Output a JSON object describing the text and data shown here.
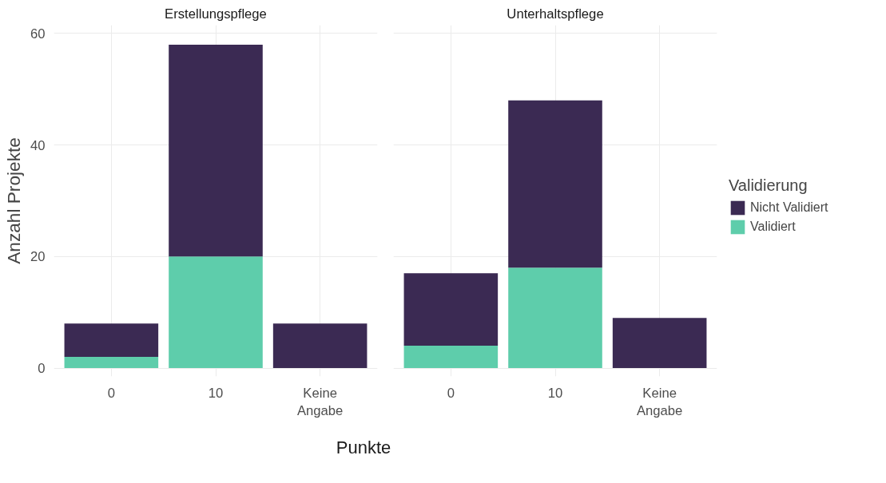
{
  "chart_data": [
    {
      "type": "bar",
      "title": "Erstellungspflege",
      "xlabel": "Punkte",
      "ylabel": "Anzahl Projekte",
      "categories": [
        "0",
        "10",
        "Keine Angabe"
      ],
      "stacked": true,
      "ylim": [
        0,
        60
      ],
      "yticks": [
        0,
        20,
        40,
        60
      ],
      "grid": true,
      "legend": "right",
      "series": [
        {
          "name": "Validiert",
          "color": "#5ecdab",
          "values": [
            2,
            20,
            0
          ]
        },
        {
          "name": "Nicht Validiert",
          "color": "#3b2a53",
          "values": [
            6,
            38,
            8
          ]
        }
      ]
    },
    {
      "type": "bar",
      "title": "Unterhaltspflege",
      "legend_title": "Validierung",
      "categories": [
        "0",
        "10",
        "Keine Angabe"
      ],
      "stacked": true,
      "ylim": [
        0,
        60
      ],
      "yticks": [
        0,
        20,
        40,
        60
      ],
      "grid": true,
      "legend": "right",
      "tick_labels": "x",
      "series": [
        {
          "name": "Validiert",
          "color": "#5ecdab",
          "values": [
            4,
            18,
            0
          ]
        },
        {
          "name": "Nicht Validiert",
          "color": "#3b2a53",
          "values": [
            13,
            30,
            9
          ]
        }
      ]
    }
  ]
}
